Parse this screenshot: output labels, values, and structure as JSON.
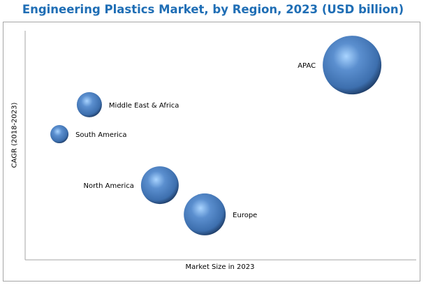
{
  "chart_data": {
    "type": "bubble",
    "title": "Engineering Plastics Market, by Region, 2023 (USD billion)",
    "xlabel": "Market Size in 2023",
    "ylabel": "CAGR (2018-2023)",
    "xlim": [
      0,
      100
    ],
    "ylim": [
      0,
      100
    ],
    "grid": false,
    "note": "Axes have no tick values; positions are relative",
    "points": [
      {
        "name": "APAC",
        "x": 83,
        "y": 84,
        "size": 42,
        "label_side": "left"
      },
      {
        "name": "Middle East & Africa",
        "x": 16.3,
        "y": 66.9,
        "size": 18,
        "label_side": "right"
      },
      {
        "name": "South America",
        "x": 8.7,
        "y": 54.2,
        "size": 13,
        "label_side": "right"
      },
      {
        "name": "North America",
        "x": 34.2,
        "y": 32.2,
        "size": 27,
        "label_side": "left"
      },
      {
        "name": "Europe",
        "x": 45.6,
        "y": 19.6,
        "size": 30,
        "label_side": "right"
      }
    ],
    "colors": {
      "bubble": "#3d6fae",
      "highlight": "#a9d4ff",
      "shadow": "#1d3a63",
      "title": "#1f6eb5"
    }
  }
}
